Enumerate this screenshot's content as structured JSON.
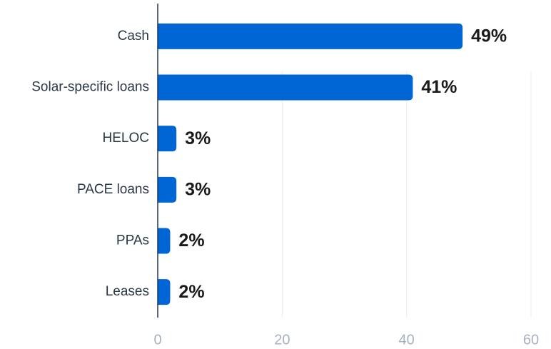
{
  "chart_data": {
    "type": "bar",
    "orientation": "horizontal",
    "categories": [
      "Cash",
      "Solar-specific loans",
      "HELOC",
      "PACE loans",
      "PPAs",
      "Leases"
    ],
    "values": [
      49,
      41,
      3,
      3,
      2,
      2
    ],
    "value_labels": [
      "49%",
      "41%",
      "3%",
      "3%",
      "2%",
      "2%"
    ],
    "color": "#0066d6",
    "xlim": [
      0,
      60
    ],
    "xticks": [
      0,
      20,
      40,
      60
    ],
    "grid": true
  }
}
